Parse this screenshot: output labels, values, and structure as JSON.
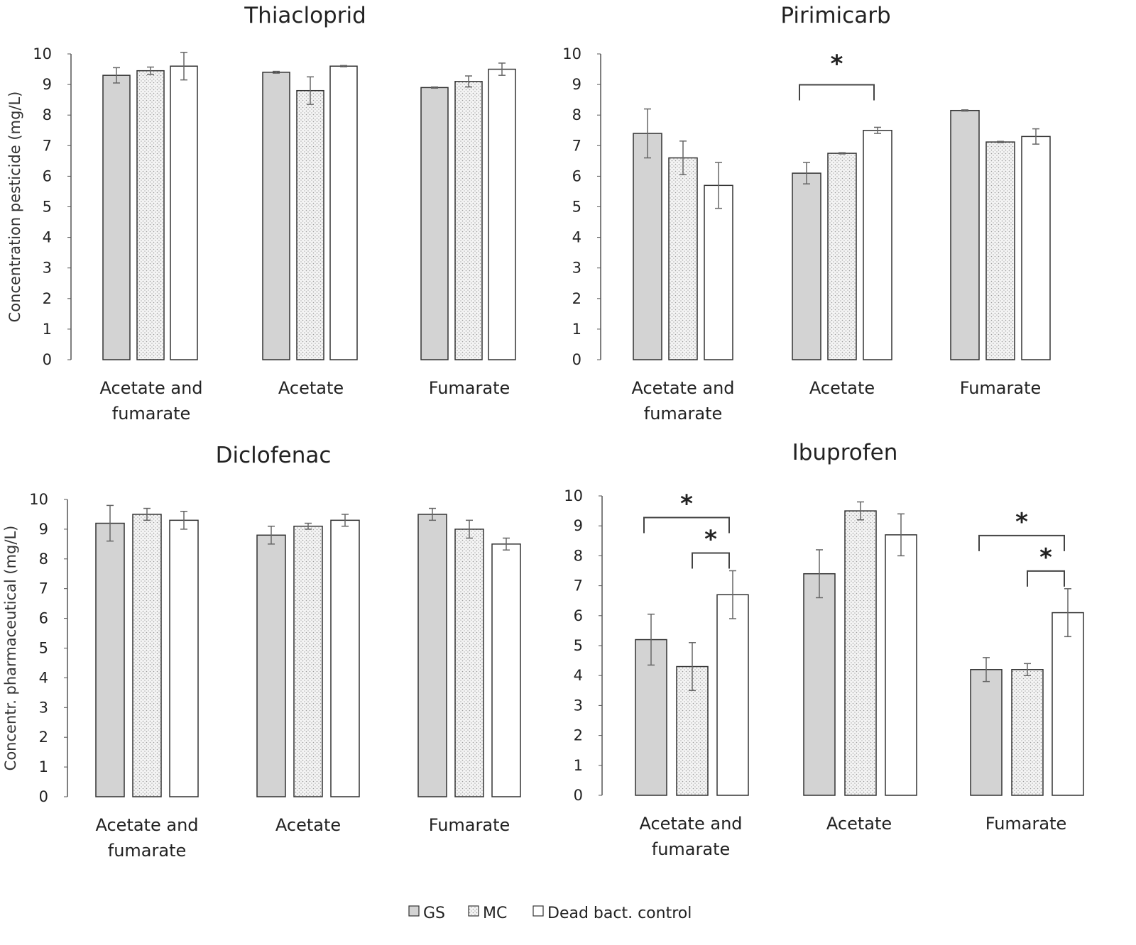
{
  "chart_data": [
    {
      "type": "bar",
      "title": "Thiacloprid",
      "ylabel": "Concentration pesticide (mg/L)",
      "ylim": [
        0,
        10
      ],
      "yticks": [
        "0",
        "1",
        "2",
        "3",
        "4",
        "5",
        "6",
        "7",
        "8",
        "9",
        "10"
      ],
      "categories": [
        [
          "Acetate and",
          "fumarate"
        ],
        [
          "Acetate"
        ],
        [
          "Fumarate"
        ]
      ],
      "series": [
        {
          "name": "GS",
          "values": [
            9.3,
            9.4,
            8.9
          ],
          "errors": [
            0.25,
            0.03,
            0.02
          ]
        },
        {
          "name": "MC",
          "values": [
            9.45,
            8.8,
            9.1
          ],
          "errors": [
            0.12,
            0.45,
            0.18
          ]
        },
        {
          "name": "Dead bact. control",
          "values": [
            9.6,
            9.6,
            9.5
          ],
          "errors": [
            0.45,
            0.02,
            0.2
          ]
        }
      ],
      "significance": []
    },
    {
      "type": "bar",
      "title": "Pirimicarb",
      "ylabel": "",
      "ylim": [
        0,
        10
      ],
      "yticks": [
        "0",
        "1",
        "2",
        "3",
        "4",
        "5",
        "6",
        "7",
        "8",
        "9",
        "10"
      ],
      "categories": [
        [
          "Acetate and",
          "fumarate"
        ],
        [
          "Acetate"
        ],
        [
          "Fumarate"
        ]
      ],
      "series": [
        {
          "name": "GS",
          "values": [
            7.4,
            6.1,
            8.15
          ],
          "errors": [
            0.8,
            0.35,
            0.02
          ]
        },
        {
          "name": "MC",
          "values": [
            6.6,
            6.75,
            7.12
          ],
          "errors": [
            0.55,
            0.02,
            0.02
          ]
        },
        {
          "name": "Dead bact. control",
          "values": [
            5.7,
            7.5,
            7.3
          ],
          "errors": [
            0.75,
            0.1,
            0.25
          ]
        }
      ],
      "significance": [
        {
          "category": 1,
          "from": 0,
          "to": 2,
          "label": "*"
        }
      ]
    },
    {
      "type": "bar",
      "title": "Diclofenac",
      "ylabel": "Concentr. pharmaceutical (mg/L)",
      "ylim": [
        0,
        10
      ],
      "yticks": [
        "0",
        "1",
        "2",
        "3",
        "4",
        "5",
        "6",
        "7",
        "8",
        "9",
        "10"
      ],
      "categories": [
        [
          "Acetate and",
          "fumarate"
        ],
        [
          "Acetate"
        ],
        [
          "Fumarate"
        ]
      ],
      "series": [
        {
          "name": "GS",
          "values": [
            9.2,
            8.8,
            9.5
          ],
          "errors": [
            0.6,
            0.3,
            0.2
          ]
        },
        {
          "name": "MC",
          "values": [
            9.5,
            9.1,
            9.0
          ],
          "errors": [
            0.2,
            0.1,
            0.3
          ]
        },
        {
          "name": "Dead bact. control",
          "values": [
            9.3,
            9.3,
            8.5
          ],
          "errors": [
            0.3,
            0.2,
            0.2
          ]
        }
      ],
      "significance": []
    },
    {
      "type": "bar",
      "title": "Ibuprofen",
      "ylabel": "",
      "ylim": [
        0,
        10
      ],
      "yticks": [
        "0",
        "1",
        "2",
        "3",
        "4",
        "5",
        "6",
        "7",
        "8",
        "9",
        "10"
      ],
      "categories": [
        [
          "Acetate and",
          "fumarate"
        ],
        [
          "Acetate"
        ],
        [
          "Fumarate"
        ]
      ],
      "series": [
        {
          "name": "GS",
          "values": [
            5.2,
            7.4,
            4.2
          ],
          "errors": [
            0.85,
            0.8,
            0.4
          ]
        },
        {
          "name": "MC",
          "values": [
            4.3,
            9.5,
            4.2
          ],
          "errors": [
            0.8,
            0.3,
            0.2
          ]
        },
        {
          "name": "Dead bact. control",
          "values": [
            6.7,
            8.7,
            6.1
          ],
          "errors": [
            0.8,
            0.7,
            0.8
          ]
        }
      ],
      "significance": [
        {
          "category": 0,
          "from": 0,
          "to": 2,
          "label": "*"
        },
        {
          "category": 0,
          "from": 1,
          "to": 2,
          "label": "*"
        },
        {
          "category": 2,
          "from": 0,
          "to": 2,
          "label": "*"
        },
        {
          "category": 2,
          "from": 1,
          "to": 2,
          "label": "*"
        }
      ]
    }
  ],
  "legend": {
    "position": "bottom-center",
    "items": [
      "GS",
      "MC",
      "Dead bact. control"
    ]
  },
  "colors": {
    "GS": "#d3d3d3",
    "MC": "#f2f2f2",
    "Dead": "#ffffff",
    "axis": "#555555"
  }
}
